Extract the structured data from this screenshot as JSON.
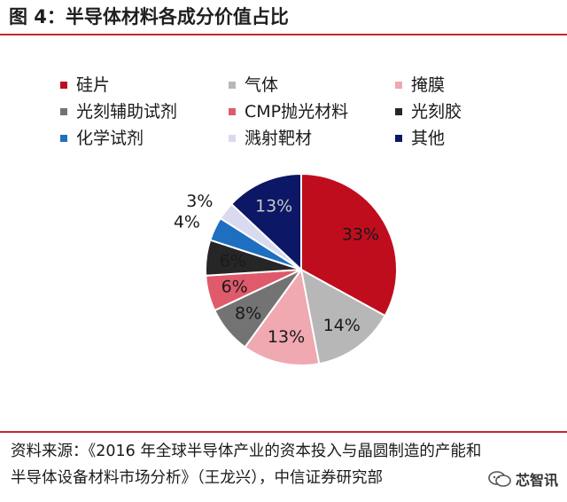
{
  "figure": {
    "title": "图 4：半导体材料各成分价值占比",
    "source_line1": "资料来源：《2016 年全球半导体产业的资本投入与晶圆制造的产能和",
    "source_line2": "半导体设备材料市场分析》（王龙兴），中信证券研究部",
    "watermark": "芯智讯"
  },
  "chart_data": {
    "type": "pie",
    "title": "",
    "slices": [
      {
        "label": "硅片",
        "value": 33,
        "display": "33%",
        "color": "#c00d1e",
        "text_color": "#1a1a1a"
      },
      {
        "label": "气体",
        "value": 14,
        "display": "14%",
        "color": "#b7b7b7",
        "text_color": "#1a1a1a"
      },
      {
        "label": "掩膜",
        "value": 13,
        "display": "13%",
        "color": "#f0a8b1",
        "text_color": "#1a1a1a"
      },
      {
        "label": "光刻辅助试剂",
        "value": 8,
        "display": "8%",
        "color": "#737373",
        "text_color": "#1a1a1a"
      },
      {
        "label": "CMP抛光材料",
        "value": 6,
        "display": "6%",
        "color": "#df5a6a",
        "text_color": "#1a1a1a"
      },
      {
        "label": "光刻胶",
        "value": 6,
        "display": "6%",
        "color": "#262626",
        "text_color": "#1a1a1a"
      },
      {
        "label": "化学试剂",
        "value": 4,
        "display": "4%",
        "color": "#1f6fc0",
        "text_color": "#1a1a1a"
      },
      {
        "label": "溅射靶材",
        "value": 3,
        "display": "3%",
        "color": "#d9d9f0",
        "text_color": "#1a1a1a"
      },
      {
        "label": "其他",
        "value": 13,
        "display": "13%",
        "color": "#0c1766",
        "text_color": "#1a1a1a"
      }
    ],
    "legend_position": "top",
    "legend_columns": 3
  }
}
